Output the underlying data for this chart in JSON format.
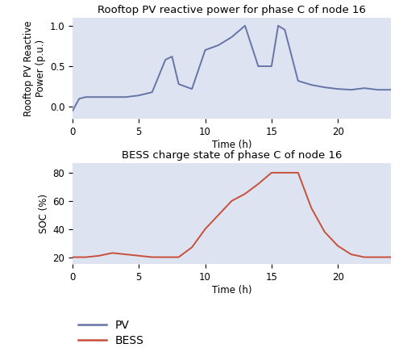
{
  "pv_time": [
    0,
    0.5,
    1,
    2,
    3,
    4,
    5,
    6,
    7,
    7.5,
    8,
    9,
    10,
    11,
    12,
    13,
    14,
    15,
    15.5,
    16,
    17,
    18,
    19,
    20,
    21,
    22,
    23,
    24
  ],
  "pv_values": [
    -0.05,
    0.1,
    0.12,
    0.12,
    0.12,
    0.12,
    0.14,
    0.18,
    0.58,
    0.62,
    0.28,
    0.22,
    0.7,
    0.76,
    0.86,
    1.0,
    0.5,
    0.5,
    1.0,
    0.95,
    0.32,
    0.27,
    0.24,
    0.22,
    0.21,
    0.23,
    0.21,
    0.21
  ],
  "bess_time": [
    0,
    1,
    2,
    3,
    4,
    5,
    6,
    7,
    8,
    9,
    10,
    11,
    12,
    13,
    14,
    15,
    16,
    17,
    18,
    19,
    20,
    21,
    22,
    23,
    24
  ],
  "bess_values": [
    20,
    20,
    21,
    23,
    22,
    21,
    20,
    20,
    20,
    27,
    40,
    50,
    60,
    65,
    72,
    80,
    80,
    80,
    55,
    38,
    28,
    22,
    20,
    20,
    20
  ],
  "pv_color": "#6674a8",
  "bess_color": "#c8503a",
  "bg_color": "#dde3f0",
  "title1": "Rooftop PV reactive power for phase C of node 16",
  "title2": "BESS charge state of phase C of node 16",
  "ylabel1": "Rooftop PV Reactive\nPower (p.u.)",
  "ylabel2": "SOC (%)",
  "xlabel": "Time (h)",
  "ylim1": [
    -0.15,
    1.1
  ],
  "ylim2": [
    15,
    87
  ],
  "yticks1": [
    0,
    0.5,
    1
  ],
  "yticks2": [
    20,
    40,
    60,
    80
  ],
  "xticks": [
    0,
    5,
    10,
    15,
    20
  ],
  "legend_labels": [
    "PV",
    "BESS"
  ],
  "title_fontsize": 9.5,
  "label_fontsize": 8.5,
  "tick_fontsize": 8.5,
  "legend_fontsize": 10
}
